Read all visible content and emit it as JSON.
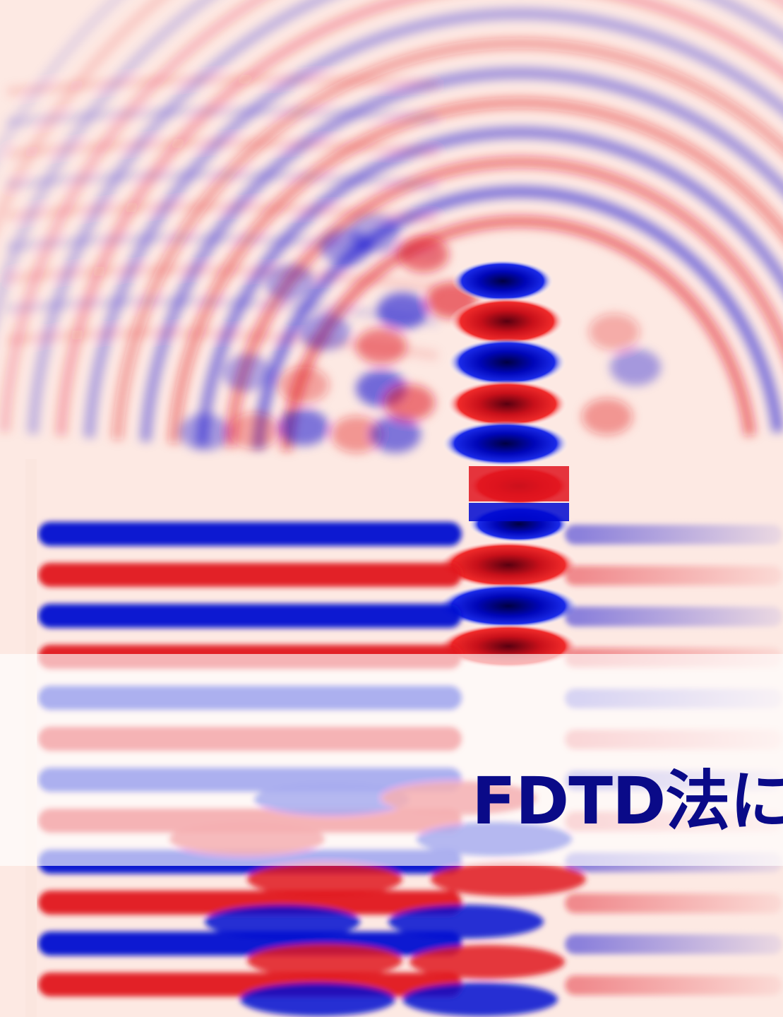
{
  "title": {
    "text": "FDTD法に"
  },
  "colors": {
    "background": "#fde9e3",
    "positive": "#e0141e",
    "positive_peak": "#5a0010",
    "negative": "#0008d0",
    "negative_peak": "#000044",
    "title": "#0a0a88"
  },
  "icons": [
    "wave-field-image"
  ]
}
